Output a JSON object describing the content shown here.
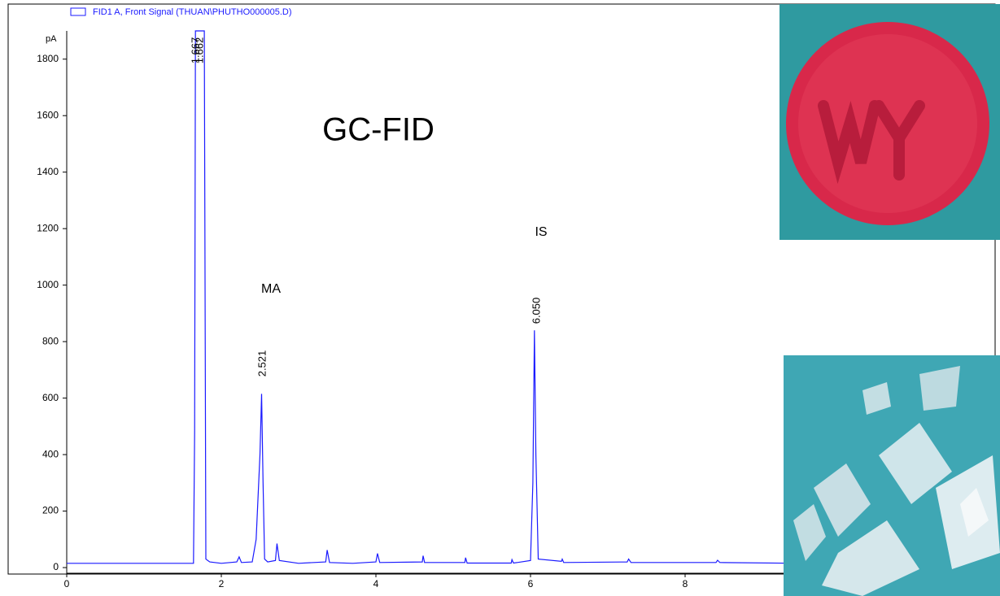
{
  "chart_data": {
    "type": "line",
    "legend_text": "FID1 A, Front Signal (THUAN\\PHUTHO000005.D)",
    "y_unit": "pA",
    "title": "GC-FID",
    "annotations": [
      "MA",
      "IS"
    ],
    "peak_labels": [
      "1.667",
      "1.662",
      "2.521",
      "6.050"
    ],
    "x": [
      0,
      1.64,
      1.655,
      1.665,
      1.7,
      1.74,
      1.78,
      1.8,
      1.85,
      2.0,
      2.2,
      2.23,
      2.26,
      2.4,
      2.45,
      2.5,
      2.521,
      2.54,
      2.56,
      2.6,
      2.7,
      2.72,
      2.75,
      3.0,
      3.35,
      3.37,
      3.4,
      3.7,
      4.0,
      4.02,
      4.05,
      4.6,
      4.61,
      4.63,
      5.15,
      5.16,
      5.18,
      5.75,
      5.76,
      5.78,
      6.0,
      6.03,
      6.05,
      6.07,
      6.1,
      6.4,
      6.41,
      6.43,
      7.25,
      7.27,
      7.3,
      8.4,
      8.42,
      8.45,
      9.5,
      12
    ],
    "series": [
      {
        "name": "FID1 A, Front Signal (THUAN\\PHUTHO000005.D)",
        "color": "#1a1aff",
        "values": [
          15,
          15,
          480,
          1900,
          1900,
          1900,
          1900,
          30,
          20,
          15,
          20,
          38,
          18,
          20,
          100,
          400,
          615,
          300,
          30,
          20,
          25,
          85,
          25,
          15,
          20,
          62,
          18,
          15,
          20,
          50,
          18,
          20,
          42,
          18,
          18,
          35,
          16,
          16,
          28,
          16,
          25,
          300,
          840,
          400,
          30,
          22,
          30,
          18,
          20,
          30,
          18,
          18,
          26,
          18,
          15,
          15
        ]
      }
    ],
    "xlim": [
      0,
      12
    ],
    "ylim": [
      -20,
      1900
    ],
    "xticks": [
      0,
      2,
      4,
      6,
      8
    ],
    "yticks": [
      0,
      200,
      400,
      600,
      800,
      1000,
      1200,
      1400,
      1600,
      1800
    ]
  }
}
